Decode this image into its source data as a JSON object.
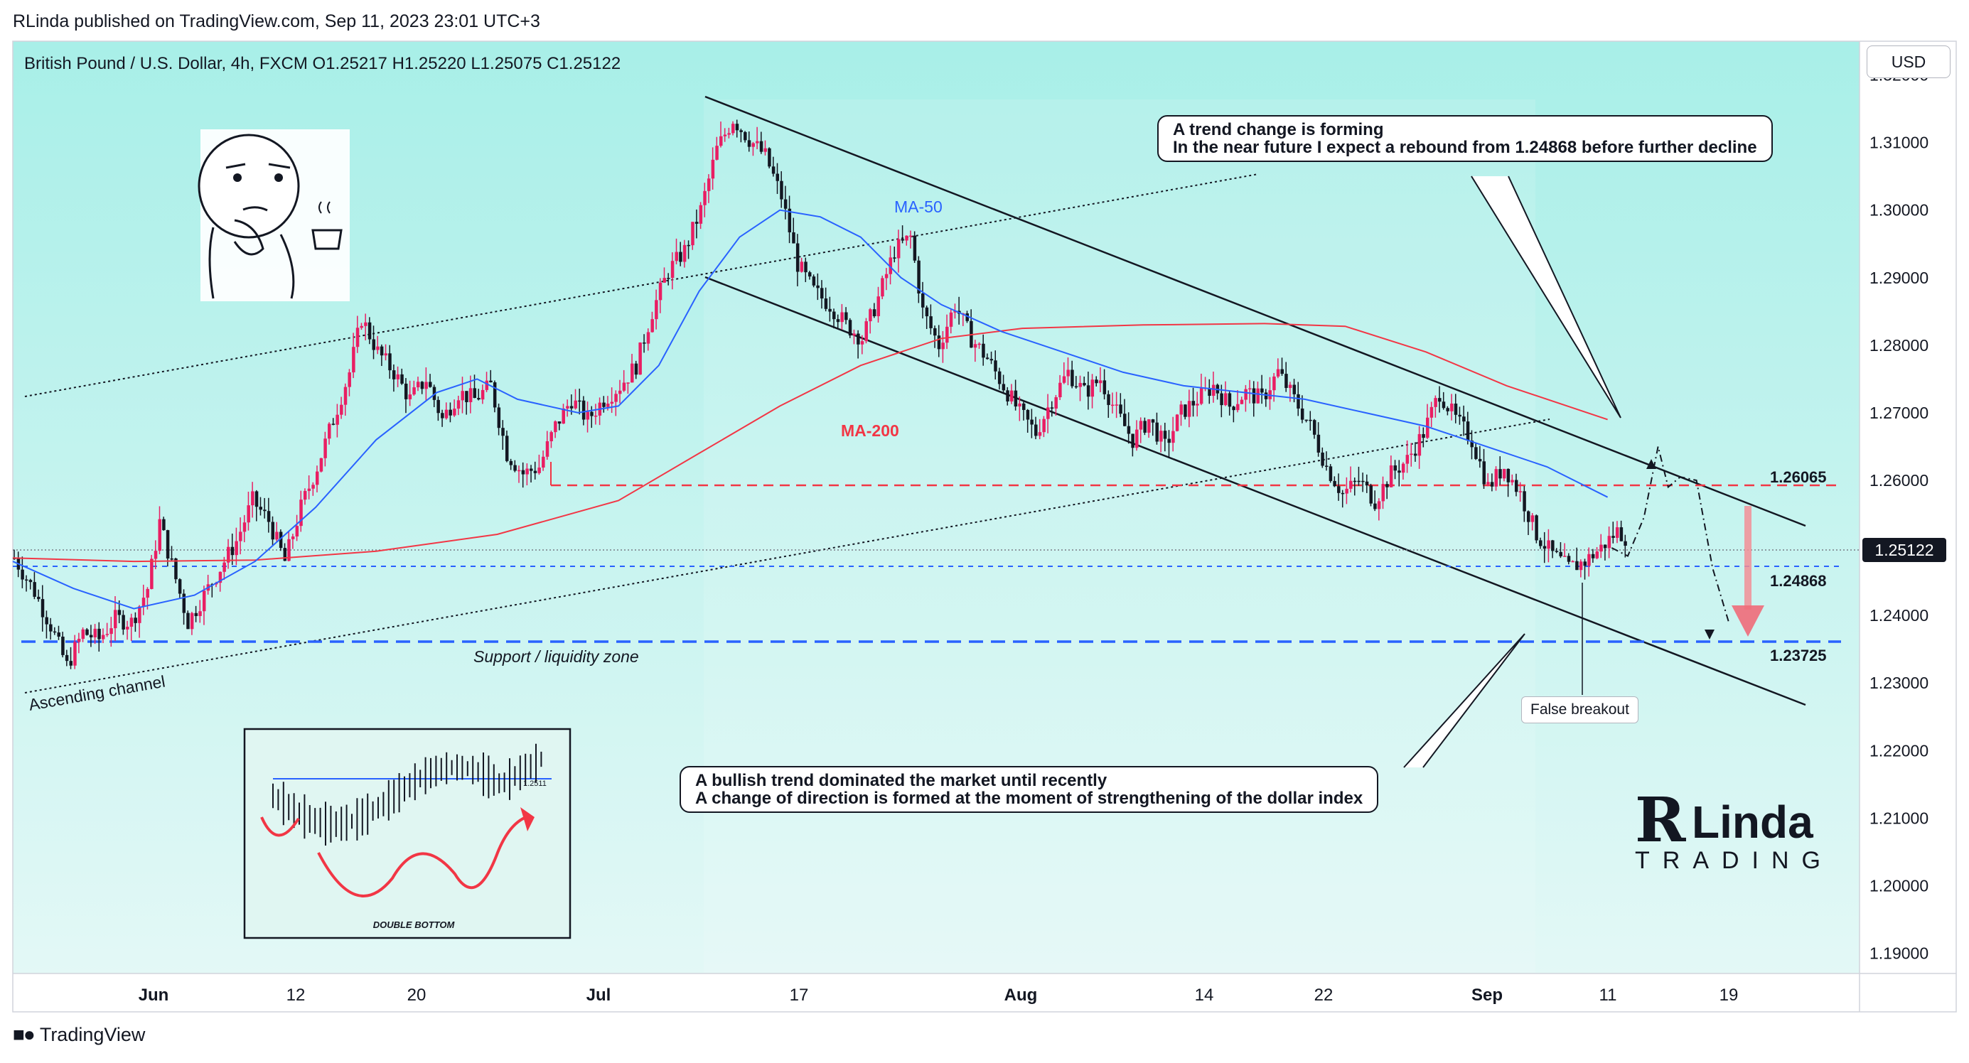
{
  "header": {
    "publish_line": "RLinda published on TradingView.com, Sep 11, 2023 23:01 UTC+3",
    "symbol_line": "British Pound / U.S. Dollar, 4h, FXCM  O1.25217  H1.25220  L1.25075  C1.25122",
    "currency_button": "USD"
  },
  "footer": {
    "brand": "TradingView"
  },
  "annotations": {
    "trend_change_line1": "A trend change is forming",
    "trend_change_line2": "In the near future I expect a rebound from 1.24868 before further decline",
    "bullish_line1": "A bullish trend dominated the market until recently",
    "bullish_line2": "A change of direction is formed at the moment of strengthening of the dollar index",
    "false_breakout": "False breakout",
    "support_zone": "Support / liquidity zone",
    "ascending_channel": "Ascending channel",
    "ma50": "MA-50",
    "ma200": "MA-200",
    "double_bottom": "DOUBLE BOTTOM",
    "inset_price": "1.2511"
  },
  "logo": {
    "r": "R",
    "linda": "Linda",
    "trading": "TRADING"
  },
  "colors": {
    "bull": "#e91e63",
    "bear": "#131722",
    "ma50": "#2962ff",
    "ma200": "#f23645",
    "support": "#2962ff",
    "resistance": "#f23645",
    "background_top": "#a8efe8",
    "background_bottom": "#e3f8f6"
  },
  "chart_data": {
    "type": "candlestick",
    "symbol": "British Pound / U.S. Dollar",
    "timeframe": "4h",
    "ohlc_last": {
      "open": 1.25217,
      "high": 1.2522,
      "low": 1.25075,
      "close": 1.25122
    },
    "current_price": "1.25122",
    "ylim": [
      1.187,
      1.325
    ],
    "y_ticks": [
      "1.32000",
      "1.31000",
      "1.30000",
      "1.29000",
      "1.28000",
      "1.27000",
      "1.26000",
      "1.25000",
      "1.24000",
      "1.23000",
      "1.22000",
      "1.21000",
      "1.20000",
      "1.19000"
    ],
    "x_ticks": [
      {
        "label": "Jun",
        "bar": 0
      },
      {
        "label": "12",
        "bar": 1
      },
      {
        "label": "20",
        "bar": 2
      },
      {
        "label": "Jul",
        "bar": 3
      },
      {
        "label": "17",
        "bar": 4
      },
      {
        "label": "Aug",
        "bar": 5
      },
      {
        "label": "14",
        "bar": 6
      },
      {
        "label": "22",
        "bar": 7
      },
      {
        "label": "Sep",
        "bar": 8
      },
      {
        "label": "11",
        "bar": 9
      },
      {
        "label": "19",
        "bar": 10
      }
    ],
    "levels": [
      {
        "name": "resistance",
        "label": "1.26065",
        "value": 1.26065
      },
      {
        "name": "rebound",
        "label": "1.24868",
        "value": 1.24868
      },
      {
        "name": "support",
        "label": "1.23725",
        "value": 1.23725
      }
    ],
    "price_path": [
      [
        0,
        1.2485
      ],
      [
        10,
        1.2435
      ],
      [
        18,
        1.2385
      ],
      [
        26,
        1.2325
      ],
      [
        34,
        1.2375
      ],
      [
        42,
        1.2365
      ],
      [
        50,
        1.2395
      ],
      [
        58,
        1.239
      ],
      [
        66,
        1.244
      ],
      [
        72,
        1.2538
      ],
      [
        78,
        1.2475
      ],
      [
        86,
        1.239
      ],
      [
        94,
        1.243
      ],
      [
        102,
        1.247
      ],
      [
        110,
        1.251
      ],
      [
        118,
        1.257
      ],
      [
        126,
        1.254
      ],
      [
        134,
        1.248
      ],
      [
        142,
        1.256
      ],
      [
        150,
        1.262
      ],
      [
        158,
        1.269
      ],
      [
        166,
        1.276
      ],
      [
        172,
        1.284
      ],
      [
        180,
        1.279
      ],
      [
        188,
        1.276
      ],
      [
        196,
        1.272
      ],
      [
        204,
        1.275
      ],
      [
        212,
        1.269
      ],
      [
        220,
        1.273
      ],
      [
        228,
        1.272
      ],
      [
        236,
        1.274
      ],
      [
        244,
        1.264
      ],
      [
        252,
        1.261
      ],
      [
        260,
        1.262
      ],
      [
        268,
        1.268
      ],
      [
        276,
        1.272
      ],
      [
        284,
        1.269
      ],
      [
        292,
        1.272
      ],
      [
        300,
        1.274
      ],
      [
        308,
        1.277
      ],
      [
        316,
        1.285
      ],
      [
        324,
        1.291
      ],
      [
        332,
        1.294
      ],
      [
        340,
        1.3
      ],
      [
        348,
        1.309
      ],
      [
        356,
        1.3135
      ],
      [
        364,
        1.3105
      ],
      [
        372,
        1.308
      ],
      [
        380,
        1.302
      ],
      [
        388,
        1.292
      ],
      [
        396,
        1.288
      ],
      [
        404,
        1.286
      ],
      [
        412,
        1.283
      ],
      [
        420,
        1.281
      ],
      [
        428,
        1.287
      ],
      [
        436,
        1.294
      ],
      [
        444,
        1.296
      ],
      [
        450,
        1.285
      ],
      [
        458,
        1.28
      ],
      [
        466,
        1.286
      ],
      [
        474,
        1.281
      ],
      [
        482,
        1.278
      ],
      [
        490,
        1.274
      ],
      [
        498,
        1.27
      ],
      [
        506,
        1.267
      ],
      [
        514,
        1.272
      ],
      [
        522,
        1.276
      ],
      [
        530,
        1.273
      ],
      [
        538,
        1.275
      ],
      [
        546,
        1.27
      ],
      [
        554,
        1.266
      ],
      [
        562,
        1.269
      ],
      [
        570,
        1.265
      ],
      [
        578,
        1.27
      ],
      [
        586,
        1.272
      ],
      [
        594,
        1.274
      ],
      [
        602,
        1.271
      ],
      [
        610,
        1.273
      ],
      [
        618,
        1.272
      ],
      [
        626,
        1.276
      ],
      [
        634,
        1.272
      ],
      [
        642,
        1.268
      ],
      [
        650,
        1.262
      ],
      [
        658,
        1.258
      ],
      [
        666,
        1.26
      ],
      [
        674,
        1.257
      ],
      [
        682,
        1.261
      ],
      [
        690,
        1.263
      ],
      [
        698,
        1.267
      ],
      [
        706,
        1.273
      ],
      [
        714,
        1.269
      ],
      [
        722,
        1.266
      ],
      [
        730,
        1.259
      ],
      [
        738,
        1.262
      ],
      [
        746,
        1.258
      ],
      [
        754,
        1.252
      ],
      [
        762,
        1.249
      ],
      [
        770,
        1.247
      ],
      [
        778,
        1.248
      ],
      [
        786,
        1.25
      ],
      [
        794,
        1.2525
      ],
      [
        800,
        1.2512
      ]
    ],
    "ma50_path": [
      [
        0,
        1.248
      ],
      [
        30,
        1.244
      ],
      [
        60,
        1.241
      ],
      [
        90,
        1.243
      ],
      [
        120,
        1.248
      ],
      [
        150,
        1.256
      ],
      [
        180,
        1.266
      ],
      [
        210,
        1.273
      ],
      [
        230,
        1.275
      ],
      [
        250,
        1.272
      ],
      [
        280,
        1.27
      ],
      [
        300,
        1.271
      ],
      [
        320,
        1.277
      ],
      [
        340,
        1.288
      ],
      [
        360,
        1.296
      ],
      [
        380,
        1.3
      ],
      [
        400,
        1.299
      ],
      [
        420,
        1.296
      ],
      [
        440,
        1.29
      ],
      [
        460,
        1.286
      ],
      [
        490,
        1.282
      ],
      [
        520,
        1.279
      ],
      [
        550,
        1.276
      ],
      [
        580,
        1.274
      ],
      [
        610,
        1.273
      ],
      [
        640,
        1.272
      ],
      [
        670,
        1.27
      ],
      [
        700,
        1.268
      ],
      [
        730,
        1.265
      ],
      [
        760,
        1.262
      ],
      [
        790,
        1.2575
      ]
    ],
    "ma200_path": [
      [
        0,
        1.2485
      ],
      [
        60,
        1.248
      ],
      [
        120,
        1.2482
      ],
      [
        180,
        1.2495
      ],
      [
        240,
        1.252
      ],
      [
        300,
        1.257
      ],
      [
        340,
        1.264
      ],
      [
        380,
        1.271
      ],
      [
        420,
        1.277
      ],
      [
        460,
        1.281
      ],
      [
        500,
        1.2825
      ],
      [
        560,
        1.283
      ],
      [
        620,
        1.2832
      ],
      [
        660,
        1.2828
      ],
      [
        700,
        1.279
      ],
      [
        740,
        1.274
      ],
      [
        790,
        1.269
      ]
    ],
    "projection_path": [
      [
        792,
        1.25
      ],
      [
        800,
        1.2488
      ],
      [
        808,
        1.2545
      ],
      [
        815,
        1.265
      ],
      [
        820,
        1.259
      ],
      [
        826,
        1.2605
      ],
      [
        834,
        1.26
      ],
      [
        842,
        1.247
      ],
      [
        850,
        1.239
      ]
    ]
  }
}
